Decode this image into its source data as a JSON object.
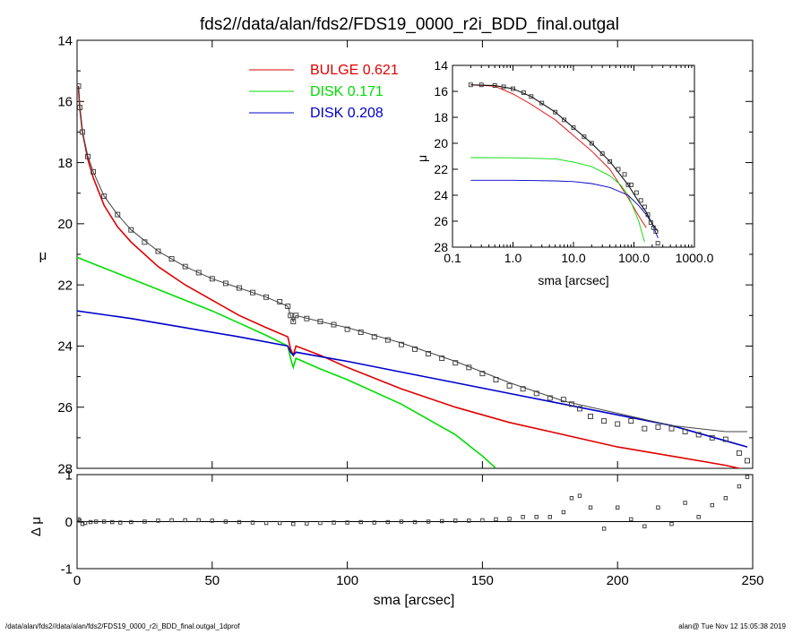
{
  "title": "fds2//data/alan/fds2/FDS19_0000_r2i_BDD_final.outgal",
  "footer_left": "/data/alan/fds2//data/alan/fds2/FDS19_0000_r2i_BDD_final.outgal_1dprof",
  "footer_right": "alan@  Tue Nov 12 15:05:38 2019",
  "colors": {
    "bulge": "#e00000",
    "disk1": "#00dd00",
    "disk2": "#0000cc",
    "data": "#000000",
    "model": "#444444"
  },
  "chart_data": [
    {
      "id": "main",
      "type": "line",
      "xlabel": "sma [arcsec]",
      "ylabel": "μ",
      "xlim": [
        0,
        250
      ],
      "ylim": [
        28,
        14
      ],
      "inverted_y": true,
      "xticks": [
        0,
        50,
        100,
        150,
        200,
        250
      ],
      "yticks": [
        14,
        16,
        18,
        20,
        22,
        24,
        26,
        28
      ],
      "legend": {
        "placement": "top-center",
        "entries": [
          {
            "label": "BULGE",
            "value": "0.621",
            "color": "#e00000"
          },
          {
            "label": "DISK",
            "value": "0.171",
            "color": "#00dd00"
          },
          {
            "label": "DISK",
            "value": "0.208",
            "color": "#0000cc"
          }
        ]
      },
      "series": [
        {
          "role": "bulge",
          "color": "#e00000",
          "x": [
            0.5,
            1,
            2,
            4,
            6,
            10,
            15,
            20,
            30,
            40,
            50,
            60,
            70,
            78,
            79,
            80,
            81,
            90,
            100,
            120,
            140,
            160,
            180,
            200,
            220,
            240,
            250
          ],
          "y": [
            15.5,
            16.2,
            17.0,
            17.9,
            18.5,
            19.4,
            20.1,
            20.6,
            21.4,
            22.0,
            22.5,
            23.0,
            23.4,
            23.7,
            24.1,
            24.3,
            24.0,
            24.3,
            24.7,
            25.4,
            26.0,
            26.5,
            26.9,
            27.3,
            27.6,
            27.9,
            28.1
          ]
        },
        {
          "role": "disk-1",
          "color": "#00dd00",
          "x": [
            0,
            10,
            20,
            30,
            40,
            50,
            60,
            70,
            78,
            79,
            80,
            81,
            90,
            100,
            120,
            140,
            150,
            155
          ],
          "y": [
            21.1,
            21.45,
            21.8,
            22.15,
            22.5,
            22.85,
            23.25,
            23.65,
            24.0,
            24.4,
            24.7,
            24.4,
            24.75,
            25.1,
            25.9,
            26.9,
            27.6,
            28.0
          ]
        },
        {
          "role": "disk-2",
          "color": "#0000cc",
          "x": [
            0,
            20,
            40,
            60,
            78,
            79,
            80,
            81,
            100,
            120,
            140,
            160,
            180,
            200,
            220,
            240,
            248
          ],
          "y": [
            22.85,
            23.1,
            23.4,
            23.7,
            24.0,
            24.2,
            24.3,
            24.2,
            24.5,
            24.85,
            25.2,
            25.55,
            25.9,
            26.25,
            26.6,
            27.1,
            27.3
          ]
        },
        {
          "role": "model-total",
          "color": "#444444",
          "x": [
            0.5,
            1,
            2,
            4,
            6,
            10,
            15,
            20,
            30,
            40,
            50,
            60,
            70,
            78,
            79,
            80,
            81,
            90,
            100,
            120,
            140,
            160,
            180,
            200,
            220,
            240,
            248
          ],
          "y": [
            15.5,
            16.2,
            17.0,
            17.8,
            18.3,
            19.1,
            19.7,
            20.2,
            20.9,
            21.4,
            21.8,
            22.1,
            22.4,
            22.7,
            23.0,
            23.2,
            23.0,
            23.2,
            23.4,
            23.9,
            24.5,
            25.2,
            25.8,
            26.2,
            26.6,
            26.8,
            26.8
          ]
        },
        {
          "role": "data",
          "marker": "square",
          "x": [
            0.5,
            1,
            2,
            4,
            6,
            10,
            15,
            20,
            25,
            30,
            35,
            40,
            45,
            50,
            55,
            60,
            65,
            70,
            75,
            78,
            79,
            80,
            81,
            85,
            90,
            95,
            100,
            105,
            110,
            115,
            120,
            125,
            130,
            135,
            140,
            145,
            150,
            155,
            160,
            165,
            170,
            175,
            180,
            183,
            186,
            190,
            195,
            200,
            205,
            210,
            215,
            220,
            225,
            230,
            235,
            240,
            245,
            248
          ],
          "y": [
            15.5,
            16.2,
            17.0,
            17.8,
            18.3,
            19.1,
            19.7,
            20.2,
            20.6,
            20.9,
            21.15,
            21.4,
            21.6,
            21.8,
            21.95,
            22.1,
            22.25,
            22.4,
            22.55,
            22.7,
            23.0,
            23.2,
            23.0,
            23.1,
            23.2,
            23.3,
            23.45,
            23.55,
            23.7,
            23.8,
            23.95,
            24.1,
            24.25,
            24.4,
            24.55,
            24.7,
            24.9,
            25.1,
            25.3,
            25.4,
            25.55,
            25.7,
            25.75,
            25.9,
            26.05,
            26.3,
            26.45,
            26.55,
            26.45,
            26.7,
            26.65,
            26.7,
            26.8,
            26.9,
            27.0,
            27.05,
            27.5,
            27.75
          ]
        }
      ]
    },
    {
      "id": "residual",
      "type": "scatter",
      "xlabel": "sma [arcsec]",
      "ylabel": "Δ μ",
      "xlim": [
        0,
        250
      ],
      "ylim": [
        -1,
        1
      ],
      "xticks": [
        0,
        50,
        100,
        150,
        200,
        250
      ],
      "yticks": [
        -1,
        0,
        1
      ],
      "zero_line": true,
      "series": [
        {
          "role": "residual",
          "marker": "square",
          "x": [
            0.5,
            1,
            2,
            3,
            5,
            7,
            10,
            13,
            16,
            20,
            25,
            30,
            35,
            40,
            45,
            50,
            55,
            60,
            65,
            70,
            75,
            80,
            85,
            90,
            95,
            100,
            105,
            110,
            115,
            120,
            125,
            130,
            135,
            140,
            145,
            150,
            155,
            160,
            165,
            170,
            175,
            180,
            183,
            186,
            190,
            195,
            200,
            205,
            210,
            215,
            220,
            225,
            230,
            235,
            240,
            245,
            248
          ],
          "y": [
            0.05,
            0.02,
            -0.05,
            -0.03,
            -0.01,
            0.0,
            0.0,
            -0.01,
            -0.02,
            -0.01,
            0.0,
            0.02,
            0.03,
            0.03,
            0.03,
            0.02,
            0.0,
            -0.01,
            -0.02,
            -0.03,
            -0.03,
            -0.05,
            -0.04,
            -0.03,
            -0.02,
            -0.02,
            -0.01,
            -0.02,
            -0.01,
            0.0,
            -0.01,
            0.0,
            0.01,
            0.02,
            0.02,
            0.03,
            0.05,
            0.06,
            0.1,
            0.1,
            0.1,
            0.2,
            0.5,
            0.55,
            0.3,
            -0.15,
            0.3,
            0.05,
            -0.1,
            0.3,
            -0.05,
            0.4,
            0.1,
            0.35,
            0.5,
            0.75,
            0.95
          ]
        }
      ]
    },
    {
      "id": "inset",
      "type": "line",
      "xlabel": "sma [arcsec]",
      "ylabel": "μ",
      "xscale": "log",
      "xlim": [
        0.1,
        1000
      ],
      "ylim": [
        28,
        14
      ],
      "inverted_y": true,
      "xticks": [
        0.1,
        1,
        10,
        100,
        1000
      ],
      "xtick_labels": [
        "0.1",
        "1.0",
        "10.0",
        "100.0",
        "1000.0"
      ],
      "yticks": [
        14,
        16,
        18,
        20,
        22,
        24,
        26,
        28
      ],
      "series": [
        {
          "role": "bulge",
          "color": "#e00000",
          "x": [
            0.2,
            0.5,
            1,
            2,
            5,
            10,
            20,
            40,
            80,
            120,
            160
          ],
          "y": [
            15.5,
            15.6,
            16.2,
            17.0,
            18.2,
            19.4,
            20.6,
            22.0,
            24.2,
            25.6,
            26.5
          ]
        },
        {
          "role": "disk-1",
          "color": "#00dd00",
          "x": [
            0.2,
            1,
            5,
            10,
            20,
            40,
            60,
            80,
            100,
            120,
            150
          ],
          "y": [
            21.1,
            21.12,
            21.2,
            21.45,
            21.8,
            22.5,
            23.2,
            24.0,
            25.1,
            26.0,
            27.6
          ]
        },
        {
          "role": "disk-2",
          "color": "#0000cc",
          "x": [
            0.2,
            1,
            5,
            10,
            20,
            40,
            80,
            120,
            160,
            200,
            250
          ],
          "y": [
            22.85,
            22.85,
            22.9,
            22.95,
            23.1,
            23.4,
            24.0,
            24.8,
            25.5,
            26.2,
            27.3
          ]
        },
        {
          "role": "model-total",
          "color": "#000000",
          "x": [
            0.2,
            0.5,
            1,
            2,
            5,
            10,
            20,
            40,
            80,
            120,
            160,
            200,
            250
          ],
          "y": [
            15.5,
            15.55,
            15.8,
            16.4,
            17.6,
            18.8,
            20.0,
            21.4,
            23.2,
            24.5,
            25.3,
            26.2,
            26.8
          ]
        },
        {
          "role": "data",
          "marker": "square",
          "x": [
            0.2,
            0.3,
            0.5,
            0.7,
            1,
            1.5,
            2,
            3,
            5,
            7,
            10,
            15,
            20,
            30,
            40,
            55,
            70,
            80,
            90,
            110,
            130,
            150,
            170,
            190,
            210,
            230,
            248
          ],
          "y": [
            15.5,
            15.5,
            15.55,
            15.65,
            15.8,
            16.1,
            16.4,
            16.9,
            17.6,
            18.2,
            18.8,
            19.5,
            20.0,
            20.8,
            21.4,
            22.0,
            22.4,
            23.2,
            23.2,
            23.8,
            24.4,
            24.9,
            25.5,
            26.1,
            26.5,
            26.8,
            27.7
          ]
        }
      ]
    }
  ]
}
